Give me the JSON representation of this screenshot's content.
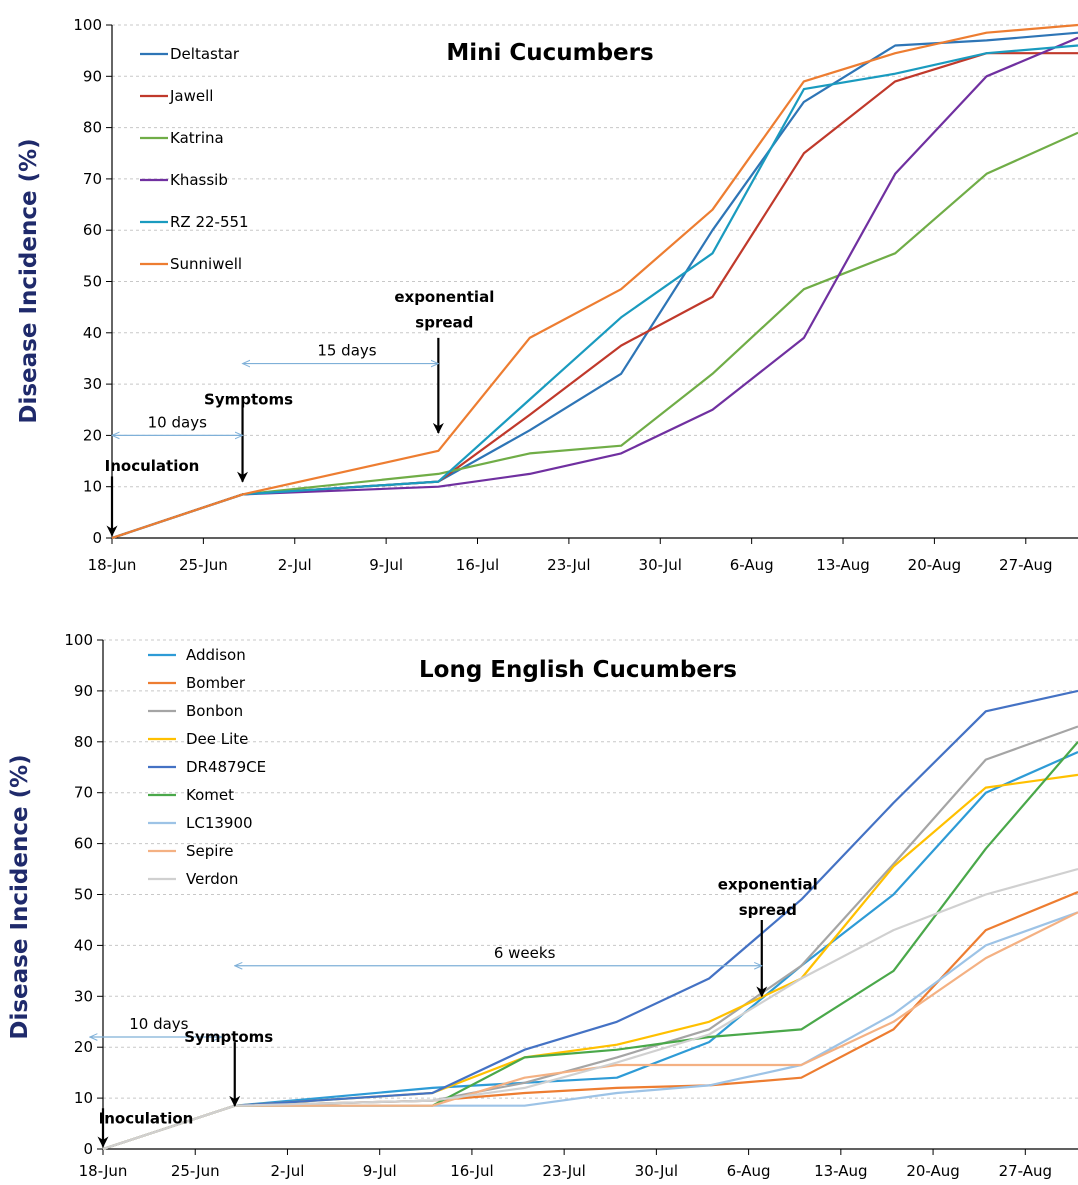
{
  "chart_data": [
    {
      "type": "line",
      "title": "Mini Cucumbers",
      "ylabel": "Disease Incidence (%)",
      "xlabel": "",
      "ylim": [
        0,
        100
      ],
      "yticks": [
        0,
        10,
        20,
        30,
        40,
        50,
        60,
        70,
        80,
        90,
        100
      ],
      "xlim": [
        "2013-06-18",
        "2013-08-31"
      ],
      "xtick_labels": [
        "18-Jun",
        "25-Jun",
        "2-Jul",
        "9-Jul",
        "16-Jul",
        "23-Jul",
        "30-Jul",
        "6-Aug",
        "13-Aug",
        "20-Aug",
        "27-Aug"
      ],
      "xticks": [
        "2013-06-18",
        "2013-06-25",
        "2013-07-02",
        "2013-07-09",
        "2013-07-16",
        "2013-07-23",
        "2013-07-30",
        "2013-08-06",
        "2013-08-13",
        "2013-08-20",
        "2013-08-27"
      ],
      "grid": "horizontal dashed",
      "legend_position": "top-left",
      "x": [
        "2013-06-18",
        "2013-06-28",
        "2013-07-13",
        "2013-07-20",
        "2013-07-27",
        "2013-08-03",
        "2013-08-10",
        "2013-08-17",
        "2013-08-24",
        "2013-08-31"
      ],
      "series": [
        {
          "name": "Deltastar",
          "color": "#2e75b6",
          "values": [
            0,
            8.5,
            11,
            21,
            32,
            60,
            85,
            96,
            97,
            98.5
          ]
        },
        {
          "name": "Jawell",
          "color": "#c0392b",
          "values": [
            0,
            8.5,
            11,
            24,
            37.5,
            47,
            75,
            89,
            94.5,
            94.5
          ]
        },
        {
          "name": "Katrina",
          "color": "#70ad47",
          "values": [
            0,
            8.5,
            12.5,
            16.5,
            18,
            32,
            48.5,
            55.5,
            71,
            79
          ]
        },
        {
          "name": "Khassib",
          "color": "#7030a0",
          "values": [
            0,
            8.5,
            10,
            12.5,
            16.5,
            25,
            39,
            71,
            90,
            97.5
          ]
        },
        {
          "name": "RZ 22-551",
          "color": "#1a9bbf",
          "values": [
            0,
            8.5,
            11,
            27,
            43,
            55.5,
            87.5,
            90.5,
            94.5,
            96
          ]
        },
        {
          "name": "Sunniwell",
          "color": "#ed7d31",
          "values": [
            0,
            8.5,
            17,
            39,
            48.5,
            64,
            89,
            94.5,
            98.5,
            100
          ]
        }
      ],
      "annotations": [
        {
          "text": "Inoculation",
          "x": "2013-06-18",
          "y": 14
        },
        {
          "text": "Symptoms",
          "x": "2013-06-28",
          "y": 27
        },
        {
          "text": "10 days",
          "x": "2013-06-23",
          "y": 20
        },
        {
          "text": "15 days",
          "x": "2013-07-06",
          "y": 34
        },
        {
          "text": "exponential",
          "x": "2013-07-13",
          "y": 47
        },
        {
          "text": "spread",
          "x": "2013-07-13",
          "y": 42
        }
      ]
    },
    {
      "type": "line",
      "title": "Long English Cucumbers",
      "ylabel": "Disease Incidence (%)",
      "xlabel": "",
      "ylim": [
        0,
        100
      ],
      "yticks": [
        0,
        10,
        20,
        30,
        40,
        50,
        60,
        70,
        80,
        90,
        100
      ],
      "xlim": [
        "2013-06-18",
        "2013-08-31"
      ],
      "xtick_labels": [
        "18-Jun",
        "25-Jun",
        "2-Jul",
        "9-Jul",
        "16-Jul",
        "23-Jul",
        "30-Jul",
        "6-Aug",
        "13-Aug",
        "20-Aug",
        "27-Aug"
      ],
      "xticks": [
        "2013-06-18",
        "2013-06-25",
        "2013-07-02",
        "2013-07-09",
        "2013-07-16",
        "2013-07-23",
        "2013-07-30",
        "2013-08-06",
        "2013-08-13",
        "2013-08-20",
        "2013-08-27"
      ],
      "grid": "horizontal dashed",
      "legend_position": "top-left",
      "x": [
        "2013-06-18",
        "2013-06-28",
        "2013-07-13",
        "2013-07-20",
        "2013-07-27",
        "2013-08-03",
        "2013-08-10",
        "2013-08-17",
        "2013-08-24",
        "2013-08-31"
      ],
      "series": [
        {
          "name": "Addison",
          "color": "#2e9bd6",
          "values": [
            0,
            8.5,
            12,
            13,
            14,
            21,
            36,
            50,
            70,
            78
          ]
        },
        {
          "name": "Bomber",
          "color": "#ed7d31",
          "values": [
            0,
            8.5,
            9.5,
            11,
            12,
            12.5,
            14,
            23.5,
            43,
            50.5
          ]
        },
        {
          "name": "Bonbon",
          "color": "#a5a5a5",
          "values": [
            0,
            8.5,
            9.5,
            13,
            18,
            23.5,
            36,
            56,
            76.5,
            83
          ]
        },
        {
          "name": "Dee Lite",
          "color": "#ffc000",
          "values": [
            0,
            8.5,
            11,
            18,
            20.5,
            25,
            33.5,
            55.5,
            71,
            73.5
          ]
        },
        {
          "name": "DR4879CE",
          "color": "#4472c4",
          "values": [
            0,
            8.5,
            11,
            19.5,
            25,
            33.5,
            49,
            68,
            86,
            90
          ]
        },
        {
          "name": "Komet",
          "color": "#4aa84a",
          "values": [
            0,
            8.5,
            8.5,
            18,
            19.5,
            22,
            23.5,
            35,
            59,
            80
          ]
        },
        {
          "name": "LC13900",
          "color": "#9dc3e6",
          "values": [
            0,
            8.5,
            8.5,
            8.5,
            11,
            12.5,
            16.5,
            26.5,
            40,
            46.5
          ]
        },
        {
          "name": "Sepire",
          "color": "#f4b183",
          "values": [
            0,
            8.5,
            8.5,
            14,
            16.5,
            16.5,
            16.5,
            25,
            37.5,
            46.5
          ]
        },
        {
          "name": "Verdon",
          "color": "#d0d0d0",
          "values": [
            0,
            8.5,
            9.5,
            12,
            17,
            22.5,
            33.5,
            43,
            50,
            55
          ]
        }
      ],
      "annotations": [
        {
          "text": "Inoculation",
          "x": "2013-06-18",
          "y": 6
        },
        {
          "text": "Symptoms",
          "x": "2013-06-28",
          "y": 22
        },
        {
          "text": "10 days",
          "x": "2013-06-23",
          "y": 22
        },
        {
          "text": "6 weeks",
          "x": "2013-07-20",
          "y": 36
        },
        {
          "text": "exponential",
          "x": "2013-08-07",
          "y": 52
        },
        {
          "text": "spread",
          "x": "2013-08-07",
          "y": 47
        }
      ]
    }
  ]
}
